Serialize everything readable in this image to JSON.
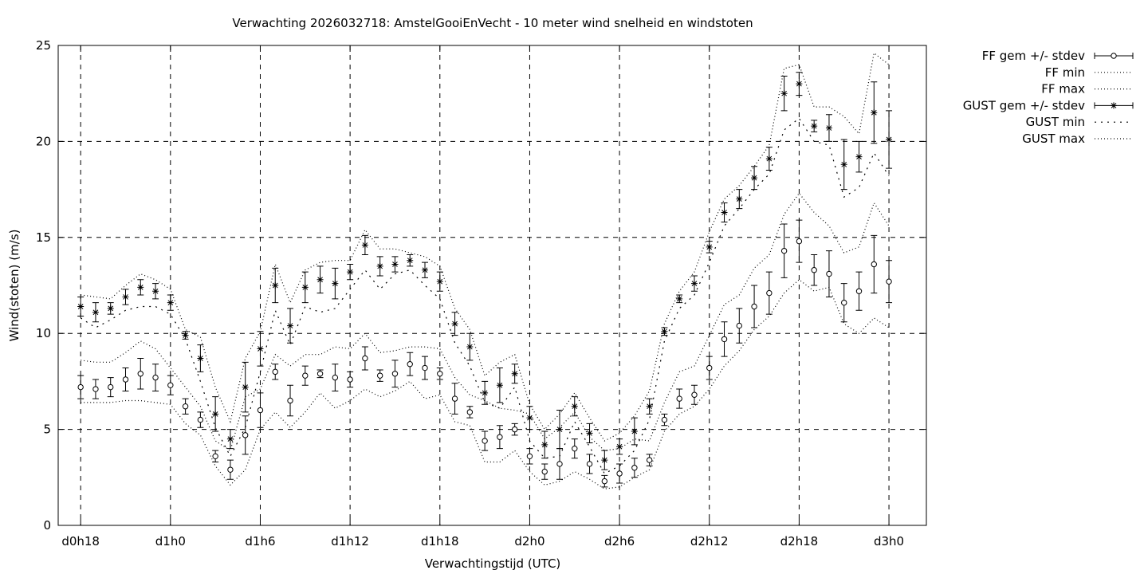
{
  "chart_data": {
    "type": "line",
    "title": "Verwachting 2026032718: AmstelGooiEnVecht - 10 meter wind snelheid en windstoten",
    "xlabel": "Verwachtingstijd (UTC)",
    "ylabel": "Wind(stoten) (m/s)",
    "ylim": [
      0,
      25
    ],
    "xlim": [
      -1.5,
      56.5
    ],
    "grid": true,
    "legend_position": "outside-top-right",
    "x_ticks": [
      {
        "x": 0,
        "label": "d0h18"
      },
      {
        "x": 6,
        "label": "d1h0"
      },
      {
        "x": 12,
        "label": "d1h6"
      },
      {
        "x": 18,
        "label": "d1h12"
      },
      {
        "x": 24,
        "label": "d1h18"
      },
      {
        "x": 30,
        "label": "d2h0"
      },
      {
        "x": 36,
        "label": "d2h6"
      },
      {
        "x": 42,
        "label": "d2h12"
      },
      {
        "x": 48,
        "label": "d2h18"
      },
      {
        "x": 54,
        "label": "d3h0"
      }
    ],
    "y_ticks": [
      0,
      5,
      10,
      15,
      20,
      25
    ],
    "x": [
      0,
      1,
      2,
      3,
      4,
      5,
      6,
      7,
      8,
      9,
      10,
      11,
      12,
      13,
      14,
      15,
      16,
      17,
      18,
      19,
      20,
      21,
      22,
      23,
      24,
      25,
      26,
      27,
      28,
      29,
      30,
      31,
      32,
      33,
      34,
      35,
      36,
      37,
      38,
      39,
      40,
      41,
      42,
      43,
      44,
      45,
      46,
      47,
      48,
      49,
      50,
      51,
      52,
      53,
      54
    ],
    "series": [
      {
        "name": "FF gem +/- stdev",
        "style": "errorbar-circle",
        "values": [
          7.2,
          7.1,
          7.2,
          7.6,
          7.9,
          7.7,
          7.3,
          6.2,
          5.5,
          3.6,
          2.9,
          4.7,
          6.0,
          8.0,
          6.5,
          7.8,
          7.9,
          7.7,
          7.6,
          8.7,
          7.8,
          7.9,
          8.4,
          8.2,
          7.9,
          6.6,
          5.9,
          4.4,
          4.6,
          5.0,
          3.6,
          2.8,
          3.2,
          4.0,
          3.2,
          2.3,
          2.7,
          3.0,
          3.4,
          5.5,
          6.6,
          6.8,
          8.2,
          9.7,
          10.4,
          11.4,
          12.1,
          14.3,
          14.8,
          13.3,
          13.1,
          11.6,
          12.2,
          13.6,
          12.7
        ],
        "errors": [
          0.6,
          0.5,
          0.5,
          0.6,
          0.8,
          0.7,
          0.5,
          0.4,
          0.4,
          0.3,
          0.5,
          1.0,
          0.9,
          0.4,
          0.8,
          0.5,
          0.2,
          0.7,
          0.4,
          0.6,
          0.3,
          0.7,
          0.6,
          0.6,
          0.3,
          0.8,
          0.3,
          0.5,
          0.6,
          0.3,
          0.4,
          0.4,
          0.8,
          0.5,
          0.5,
          0.3,
          0.5,
          0.5,
          0.3,
          0.3,
          0.5,
          0.5,
          0.6,
          0.9,
          0.9,
          1.1,
          1.1,
          1.4,
          1.1,
          0.8,
          1.2,
          1.0,
          1.0,
          1.5,
          1.1
        ]
      },
      {
        "name": "FF min",
        "style": "dotted",
        "values": [
          6.4,
          6.4,
          6.4,
          6.5,
          6.5,
          6.4,
          6.3,
          5.3,
          4.7,
          3.1,
          2.1,
          2.9,
          5.0,
          5.9,
          5.1,
          5.9,
          6.9,
          6.1,
          6.5,
          7.1,
          6.7,
          7.0,
          7.5,
          6.6,
          6.8,
          5.4,
          5.2,
          3.3,
          3.3,
          3.9,
          2.8,
          2.1,
          2.3,
          2.8,
          2.4,
          1.9,
          2.0,
          2.5,
          2.9,
          4.9,
          5.8,
          6.2,
          7.1,
          8.3,
          9.1,
          10.2,
          10.9,
          12.1,
          12.8,
          12.2,
          12.4,
          10.5,
          10.0,
          10.8,
          10.3
        ]
      },
      {
        "name": "FF max",
        "style": "dotted",
        "values": [
          8.6,
          8.5,
          8.5,
          9.0,
          9.6,
          9.2,
          8.2,
          7.2,
          6.2,
          4.4,
          3.9,
          6.7,
          7.1,
          8.9,
          8.3,
          8.9,
          8.9,
          9.3,
          9.2,
          10.0,
          9.0,
          9.1,
          9.3,
          9.3,
          9.2,
          7.7,
          6.8,
          6.5,
          6.1,
          6.0,
          5.8,
          4.5,
          5.1,
          5.9,
          4.6,
          3.9,
          4.0,
          4.5,
          4.4,
          6.4,
          8.0,
          8.3,
          9.9,
          11.5,
          12.0,
          13.4,
          14.1,
          16.2,
          17.3,
          16.3,
          15.6,
          14.2,
          14.5,
          16.8,
          15.6
        ]
      },
      {
        "name": "GUST gem +/- stdev",
        "style": "errorbar-star",
        "values": [
          11.4,
          11.1,
          11.3,
          11.9,
          12.4,
          12.2,
          11.6,
          9.9,
          8.7,
          5.8,
          4.5,
          7.2,
          9.2,
          12.5,
          10.4,
          12.4,
          12.8,
          12.6,
          13.2,
          14.6,
          13.5,
          13.6,
          13.8,
          13.3,
          12.7,
          10.5,
          9.3,
          6.9,
          7.3,
          7.9,
          5.6,
          4.2,
          5.0,
          6.2,
          4.8,
          3.4,
          4.1,
          4.9,
          6.2,
          10.1,
          11.8,
          12.6,
          14.5,
          16.3,
          17.0,
          18.1,
          19.1,
          22.5,
          23.0,
          20.8,
          20.7,
          18.8,
          19.2,
          21.5,
          20.1
        ],
        "errors": [
          0.5,
          0.5,
          0.3,
          0.4,
          0.4,
          0.4,
          0.4,
          0.2,
          0.7,
          0.9,
          0.5,
          1.3,
          0.9,
          0.9,
          0.9,
          0.8,
          0.7,
          0.8,
          0.4,
          0.5,
          0.5,
          0.4,
          0.3,
          0.4,
          0.5,
          0.6,
          0.7,
          0.6,
          0.9,
          0.5,
          0.6,
          0.7,
          1.0,
          0.5,
          0.5,
          0.5,
          0.4,
          0.7,
          0.4,
          0.2,
          0.2,
          0.4,
          0.3,
          0.5,
          0.5,
          0.6,
          0.6,
          0.9,
          0.6,
          0.3,
          0.7,
          1.3,
          0.8,
          1.6,
          1.5
        ]
      },
      {
        "name": "GUST min",
        "style": "dotted-coarse",
        "values": [
          10.8,
          10.3,
          10.7,
          11.2,
          11.4,
          11.4,
          11.0,
          9.7,
          7.5,
          5.1,
          3.6,
          5.1,
          8.0,
          11.2,
          9.4,
          11.4,
          11.1,
          11.3,
          12.3,
          13.3,
          12.3,
          13.1,
          13.3,
          12.5,
          11.8,
          9.5,
          8.3,
          6.4,
          6.1,
          7.2,
          4.4,
          3.5,
          3.6,
          5.4,
          4.1,
          2.7,
          3.1,
          3.9,
          5.5,
          9.6,
          11.3,
          12.0,
          13.7,
          15.6,
          16.5,
          17.5,
          18.3,
          20.6,
          21.2,
          20.0,
          19.8,
          17.1,
          17.6,
          19.4,
          18.2
        ]
      },
      {
        "name": "GUST max",
        "style": "dotted",
        "values": [
          12.0,
          11.9,
          11.8,
          12.5,
          13.1,
          12.8,
          12.3,
          10.2,
          9.8,
          7.2,
          5.4,
          8.7,
          10.1,
          13.6,
          11.6,
          13.3,
          13.7,
          13.8,
          13.8,
          15.4,
          14.4,
          14.4,
          14.2,
          14.0,
          13.5,
          11.3,
          10.2,
          7.8,
          8.5,
          8.9,
          6.3,
          5.0,
          5.8,
          6.9,
          5.6,
          4.4,
          4.8,
          5.7,
          7.0,
          10.5,
          12.2,
          13.2,
          15.3,
          17.0,
          17.7,
          18.7,
          19.8,
          23.8,
          24.0,
          21.8,
          21.8,
          21.3,
          20.4,
          24.6,
          24.0
        ]
      }
    ]
  }
}
